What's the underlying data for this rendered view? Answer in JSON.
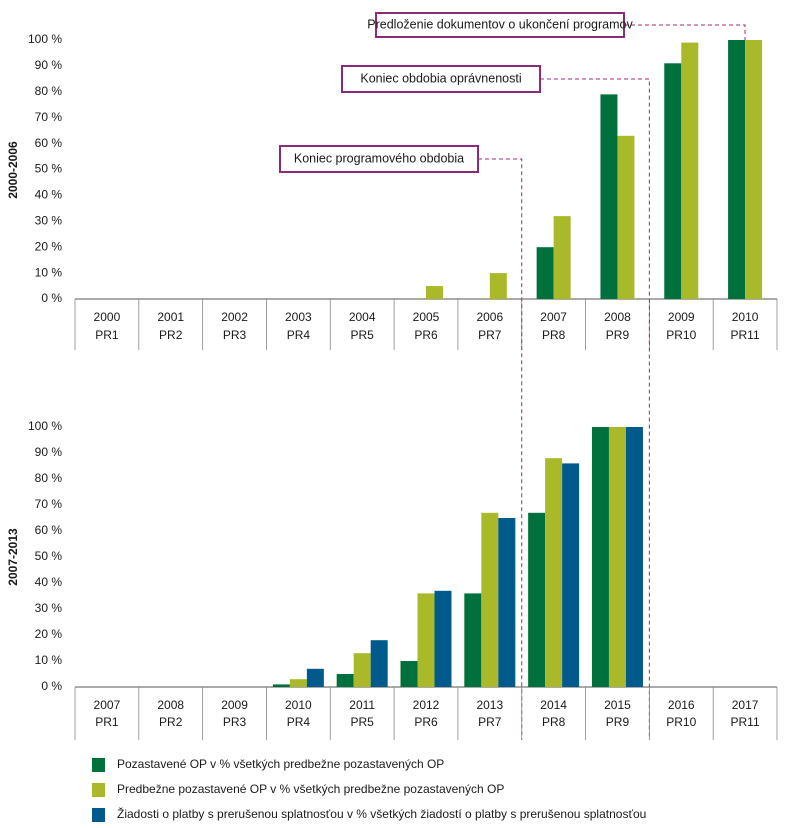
{
  "chart_data": [
    {
      "type": "bar",
      "y_label": "2000-2006",
      "categories": [
        [
          "2000",
          "PR1"
        ],
        [
          "2001",
          "PR2"
        ],
        [
          "2002",
          "PR3"
        ],
        [
          "2003",
          "PR4"
        ],
        [
          "2004",
          "PR5"
        ],
        [
          "2005",
          "PR6"
        ],
        [
          "2006",
          "PR7"
        ],
        [
          "2007",
          "PR8"
        ],
        [
          "2008",
          "PR9"
        ],
        [
          "2009",
          "PR10"
        ],
        [
          "2010",
          "PR11"
        ]
      ],
      "series": [
        {
          "color": "#00703c",
          "values": [
            0,
            0,
            0,
            0,
            0,
            0,
            0,
            20,
            79,
            91,
            100
          ]
        },
        {
          "color": "#a9b92a",
          "values": [
            0,
            0,
            0,
            0,
            0,
            5,
            10,
            32,
            63,
            99,
            100
          ]
        }
      ],
      "ylim": [
        0,
        100
      ],
      "yticks": [
        {
          "value": 0,
          "label": "0 %"
        },
        {
          "value": 10,
          "label": "10 %"
        },
        {
          "value": 20,
          "label": "20 %"
        },
        {
          "value": 30,
          "label": "30 %"
        },
        {
          "value": 40,
          "label": "40 %"
        },
        {
          "value": 50,
          "label": "50 %"
        },
        {
          "value": 60,
          "label": "60 %"
        },
        {
          "value": 70,
          "label": "70 %"
        },
        {
          "value": 80,
          "label": "80 %"
        },
        {
          "value": 90,
          "label": "90 %"
        },
        {
          "value": 100,
          "label": "100 %"
        }
      ],
      "grid": false,
      "annotations": [
        "Predloženie dokumentov o ukončení programov",
        "Koniec obdobia oprávnenosti",
        "Koniec programového obdobia"
      ]
    },
    {
      "type": "bar",
      "y_label": "2007-2013",
      "categories": [
        [
          "2007",
          "PR1"
        ],
        [
          "2008",
          "PR2"
        ],
        [
          "2009",
          "PR3"
        ],
        [
          "2010",
          "PR4"
        ],
        [
          "2011",
          "PR5"
        ],
        [
          "2012",
          "PR6"
        ],
        [
          "2013",
          "PR7"
        ],
        [
          "2014",
          "PR8"
        ],
        [
          "2015",
          "PR9"
        ],
        [
          "2016",
          "PR10"
        ],
        [
          "2017",
          "PR11"
        ]
      ],
      "series": [
        {
          "name": "Pozastavené OP v % všetkých predbežne pozastavených OP",
          "color": "#00703c",
          "values": [
            0,
            0,
            0,
            1,
            5,
            10,
            36,
            67,
            100,
            0,
            0
          ]
        },
        {
          "name": "Predbežne pozastavené OP v % všetkých predbežne pozastavených OP",
          "color": "#a9b92a",
          "values": [
            0,
            0,
            0,
            3,
            13,
            36,
            67,
            88,
            100,
            0,
            0
          ]
        },
        {
          "name": "Žiadosti o platby s prerušenou splatnosťou v % všetkých žiadostí o platby s prerušenou splatnosťou",
          "color": "#005a8c",
          "values": [
            0,
            0,
            0,
            7,
            18,
            37,
            65,
            86,
            100,
            0,
            0
          ]
        }
      ],
      "ylim": [
        0,
        100
      ],
      "yticks": [
        {
          "value": 0,
          "label": "0 %"
        },
        {
          "value": 10,
          "label": "10 %"
        },
        {
          "value": 20,
          "label": "20 %"
        },
        {
          "value": 30,
          "label": "30 %"
        },
        {
          "value": 40,
          "label": "40 %"
        },
        {
          "value": 50,
          "label": "50 %"
        },
        {
          "value": 60,
          "label": "60 %"
        },
        {
          "value": 70,
          "label": "70 %"
        },
        {
          "value": 80,
          "label": "80 %"
        },
        {
          "value": 90,
          "label": "90 %"
        },
        {
          "value": 100,
          "label": "100 %"
        }
      ],
      "grid": false,
      "legend": "bottom-left"
    }
  ]
}
